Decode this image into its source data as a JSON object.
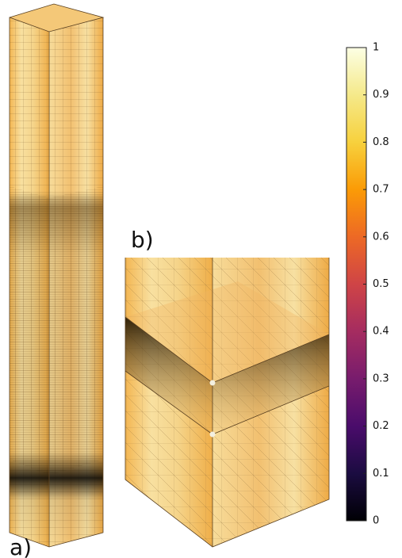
{
  "panels": {
    "a": "a)",
    "b": "b)"
  },
  "colorbar": {
    "lim": [
      0,
      1
    ],
    "ticks": [
      0,
      0.1,
      0.2,
      0.3,
      0.4,
      0.5,
      0.6,
      0.7,
      0.8,
      0.9,
      1
    ]
  }
}
